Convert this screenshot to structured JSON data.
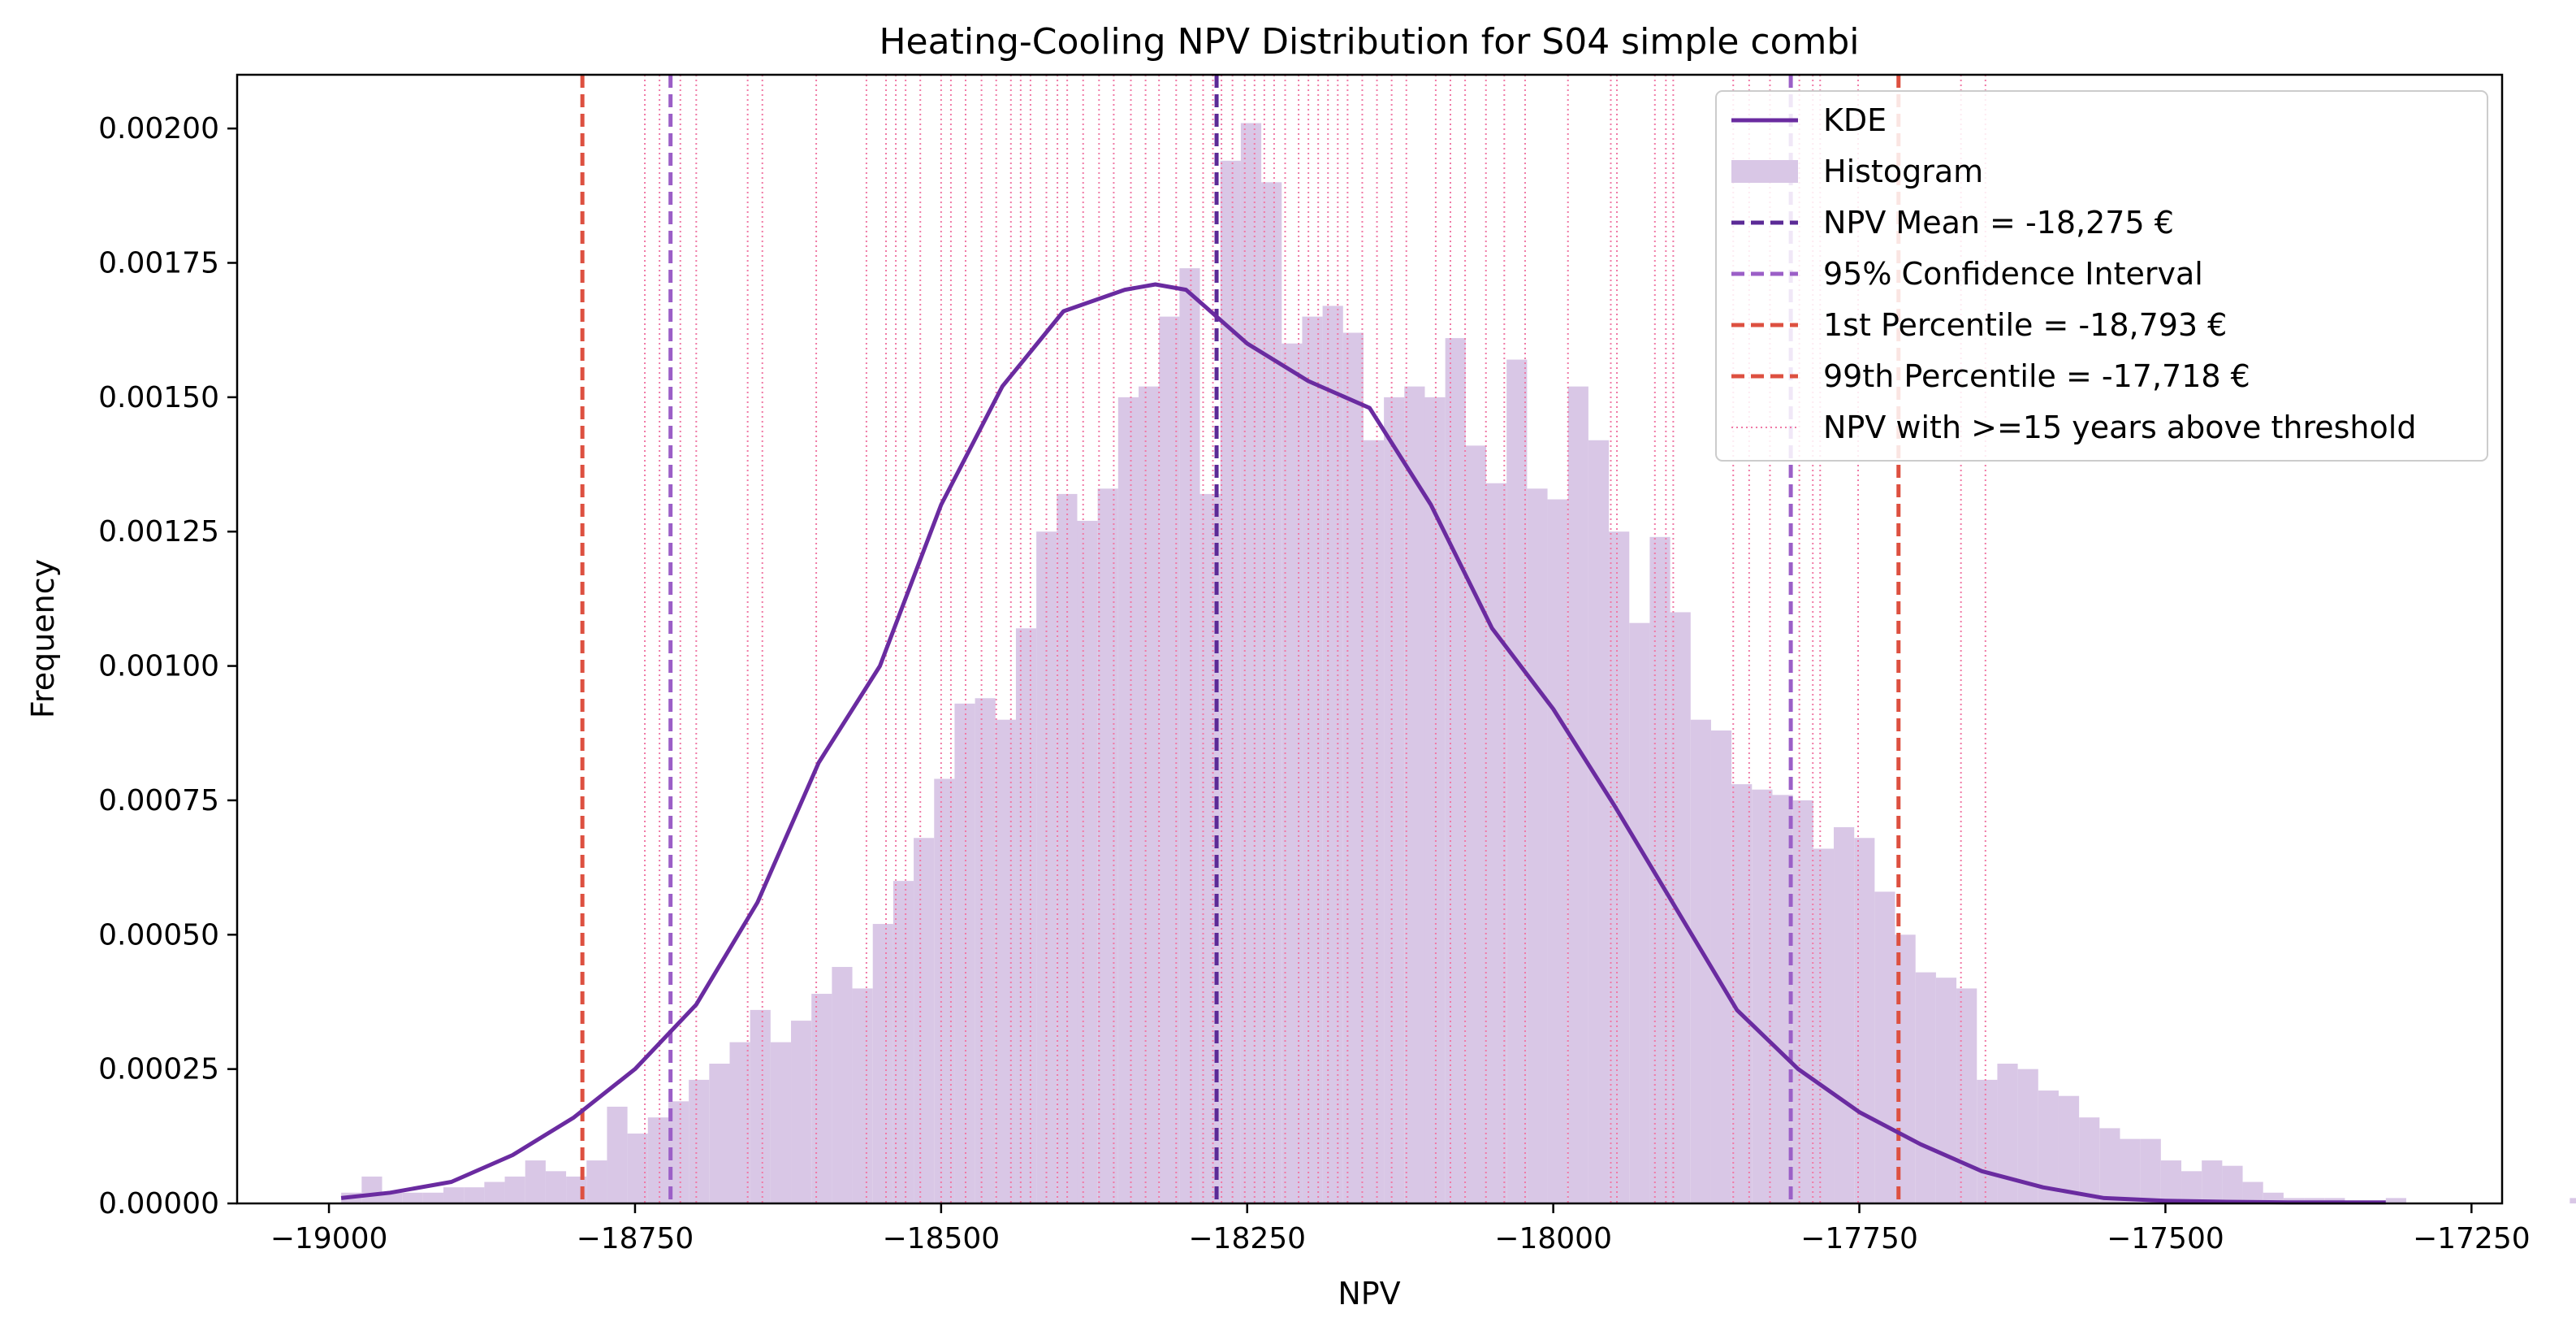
{
  "chart_data": {
    "type": "histogram",
    "title": "Heating-Cooling NPV Distribution for S04 simple combi",
    "xlabel": "NPV",
    "ylabel": "Frequency",
    "xlim": [
      -19075,
      -17225
    ],
    "ylim": [
      0,
      0.0021
    ],
    "grid": false,
    "legend_position": "top-right",
    "x_ticks": [
      -19000,
      -18750,
      -18500,
      -18250,
      -18000,
      -17750,
      -17500,
      -17250
    ],
    "x_tick_labels": [
      "−19000",
      "−18750",
      "−18500",
      "−18250",
      "−18000",
      "−17750",
      "−17500",
      "−17250"
    ],
    "y_ticks": [
      0,
      0.00025,
      0.0005,
      0.00075,
      0.001,
      0.00125,
      0.0015,
      0.00175,
      0.002
    ],
    "y_tick_labels": [
      "0.00000",
      "0.00025",
      "0.00050",
      "0.00075",
      "0.00100",
      "0.00125",
      "0.00150",
      "0.00175",
      "0.00200"
    ],
    "histogram": {
      "bin_start": -18990,
      "bin_width": 16.7,
      "values": [
        2e-05,
        5e-05,
        2e-05,
        2e-05,
        2e-05,
        3e-05,
        3e-05,
        4e-05,
        5e-05,
        8e-05,
        6e-05,
        5e-05,
        8e-05,
        0.00018,
        0.00013,
        0.00016,
        0.00019,
        0.00023,
        0.00026,
        0.0003,
        0.00036,
        0.0003,
        0.00034,
        0.00039,
        0.00044,
        0.0004,
        0.00052,
        0.0006,
        0.00068,
        0.00079,
        0.00093,
        0.00094,
        0.0009,
        0.00107,
        0.00125,
        0.00132,
        0.00127,
        0.00133,
        0.0015,
        0.00152,
        0.00165,
        0.00174,
        0.00132,
        0.00194,
        0.00201,
        0.0019,
        0.0016,
        0.00165,
        0.00167,
        0.00162,
        0.00142,
        0.0015,
        0.00152,
        0.0015,
        0.00161,
        0.00141,
        0.00134,
        0.00157,
        0.00133,
        0.00131,
        0.00152,
        0.00142,
        0.00125,
        0.00108,
        0.00124,
        0.0011,
        0.0009,
        0.00088,
        0.00078,
        0.00077,
        0.00076,
        0.00075,
        0.00066,
        0.0007,
        0.00068,
        0.00058,
        0.0005,
        0.00043,
        0.00042,
        0.0004,
        0.00023,
        0.00026,
        0.00025,
        0.00021,
        0.0002,
        0.00016,
        0.00014,
        0.00012,
        0.00012,
        8e-05,
        6e-05,
        8e-05,
        7e-05,
        4e-05,
        2e-05,
        1e-05,
        1e-05,
        1e-05,
        0.0,
        0.0,
        1e-05,
        0.0,
        0.0,
        0.0,
        0.0,
        0.0,
        0.0,
        0.0,
        0.0,
        1e-05,
        0.0,
        0.0,
        0.0,
        0.0,
        0.0,
        0.0,
        1e-05,
        0.0,
        0.0,
        0.0,
        0.0,
        0.0,
        0.0,
        1e-05
      ]
    },
    "kde": {
      "x": [
        -18990,
        -18950,
        -18900,
        -18850,
        -18800,
        -18750,
        -18700,
        -18650,
        -18600,
        -18550,
        -18500,
        -18450,
        -18400,
        -18350,
        -18325,
        -18300,
        -18250,
        -18200,
        -18150,
        -18100,
        -18050,
        -18000,
        -17950,
        -17900,
        -17850,
        -17800,
        -17750,
        -17700,
        -17650,
        -17600,
        -17550,
        -17500,
        -17450,
        -17400,
        -17350,
        -17320
      ],
      "y": [
        1e-05,
        2e-05,
        4e-05,
        9e-05,
        0.00016,
        0.00025,
        0.00037,
        0.00056,
        0.00082,
        0.001,
        0.0013,
        0.00152,
        0.00166,
        0.0017,
        0.00171,
        0.0017,
        0.0016,
        0.00153,
        0.00148,
        0.0013,
        0.00107,
        0.00092,
        0.00074,
        0.00055,
        0.00036,
        0.00025,
        0.00017,
        0.00011,
        6e-05,
        3e-05,
        1e-05,
        5e-06,
        3e-06,
        2e-06,
        2e-06,
        2e-06
      ]
    },
    "vlines": {
      "mean": -18275,
      "ci_95": [
        -18721,
        -17806
      ],
      "p1": -18793,
      "p99": -17718,
      "threshold_npv": [
        -18742,
        -18730,
        -18713,
        -18700,
        -18658,
        -18646,
        -18602,
        -18561,
        -18545,
        -18537,
        -18529,
        -18517,
        -18500,
        -18492,
        -18480,
        -18467,
        -18455,
        -18443,
        -18435,
        -18427,
        -18414,
        -18405,
        -18397,
        -18384,
        -18371,
        -18359,
        -18345,
        -18333,
        -18322,
        -18308,
        -18296,
        -18286,
        -18278,
        -18271,
        -18262,
        -18252,
        -18244,
        -18236,
        -18228,
        -18219,
        -18208,
        -18200,
        -18192,
        -18184,
        -18176,
        -18168,
        -18156,
        -18144,
        -18132,
        -18120,
        -18096,
        -18084,
        -18072,
        -18055,
        -18040,
        -18023,
        -17988,
        -17953,
        -17948,
        -17917,
        -17908,
        -17902,
        -17853,
        -17840,
        -17823,
        -17799,
        -17788,
        -17782,
        -17751,
        -17667,
        -17647
      ]
    },
    "colors": {
      "kde": "#6a2ba0",
      "histogram": "#d9c7e6",
      "mean": "#5b2a96",
      "ci": "#9b5fc7",
      "percentile": "#dd5040",
      "threshold": "#f07aa6"
    },
    "legend": [
      {
        "label": "KDE",
        "style": "solid",
        "color": "#6a2ba0"
      },
      {
        "label": "Histogram",
        "style": "patch",
        "color": "#d9c7e6"
      },
      {
        "label": "NPV Mean = -18,275 €",
        "style": "dashed",
        "color": "#5b2a96"
      },
      {
        "label": "95% Confidence Interval",
        "style": "dashed",
        "color": "#9b5fc7"
      },
      {
        "label": "1st Percentile = -18,793 €",
        "style": "dashed",
        "color": "#dd5040"
      },
      {
        "label": "99th Percentile = -17,718 €",
        "style": "dashed",
        "color": "#dd5040"
      },
      {
        "label": "NPV with >=15 years above threshold",
        "style": "dotted",
        "color": "#f07aa6"
      }
    ]
  }
}
